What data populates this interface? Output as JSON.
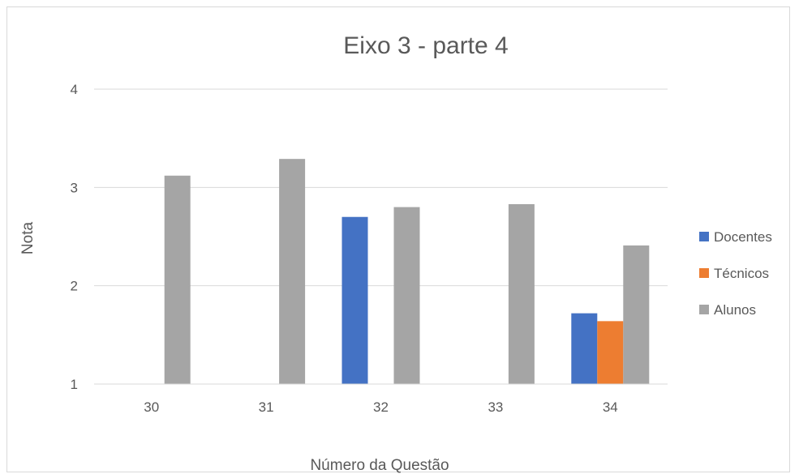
{
  "chart_data": {
    "type": "bar",
    "title": "Eixo 3 - parte 4",
    "xlabel": "Número da Questão",
    "ylabel": "Nota",
    "categories": [
      "30",
      "31",
      "32",
      "33",
      "34"
    ],
    "ylim": [
      1,
      4
    ],
    "yticks": [
      1,
      2,
      3,
      4
    ],
    "grid": true,
    "legend_position": "right",
    "series": [
      {
        "name": "Docentes",
        "color": "#4472C4",
        "values": [
          null,
          null,
          2.7,
          null,
          1.72
        ]
      },
      {
        "name": "Técnicos",
        "color": "#ED7D31",
        "values": [
          null,
          null,
          null,
          null,
          1.64
        ]
      },
      {
        "name": "Alunos",
        "color": "#A5A5A5",
        "values": [
          3.12,
          3.29,
          2.8,
          2.83,
          2.41
        ]
      }
    ]
  }
}
